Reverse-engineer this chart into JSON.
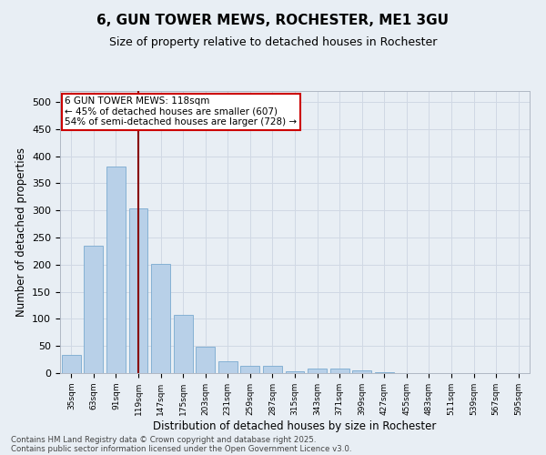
{
  "title": "6, GUN TOWER MEWS, ROCHESTER, ME1 3GU",
  "subtitle": "Size of property relative to detached houses in Rochester",
  "xlabel": "Distribution of detached houses by size in Rochester",
  "ylabel": "Number of detached properties",
  "categories": [
    "35sqm",
    "63sqm",
    "91sqm",
    "119sqm",
    "147sqm",
    "175sqm",
    "203sqm",
    "231sqm",
    "259sqm",
    "287sqm",
    "315sqm",
    "343sqm",
    "371sqm",
    "399sqm",
    "427sqm",
    "455sqm",
    "483sqm",
    "511sqm",
    "539sqm",
    "567sqm",
    "595sqm"
  ],
  "values": [
    34,
    235,
    380,
    303,
    202,
    107,
    49,
    22,
    14,
    13,
    4,
    9,
    9,
    5,
    1,
    0,
    0,
    0,
    0,
    0,
    0
  ],
  "bar_color": "#b8d0e8",
  "bar_edge_color": "#7aaad0",
  "grid_color": "#d0d8e4",
  "bg_color": "#e8eef4",
  "vline_x_index": 3,
  "vline_color": "#880000",
  "annotation_line1": "6 GUN TOWER MEWS: 118sqm",
  "annotation_line2": "← 45% of detached houses are smaller (607)",
  "annotation_line3": "54% of semi-detached houses are larger (728) →",
  "annotation_box_color": "#ffffff",
  "annotation_box_edge": "#cc0000",
  "footer_line1": "Contains HM Land Registry data © Crown copyright and database right 2025.",
  "footer_line2": "Contains public sector information licensed under the Open Government Licence v3.0.",
  "ylim": [
    0,
    520
  ],
  "yticks": [
    0,
    50,
    100,
    150,
    200,
    250,
    300,
    350,
    400,
    450,
    500
  ]
}
